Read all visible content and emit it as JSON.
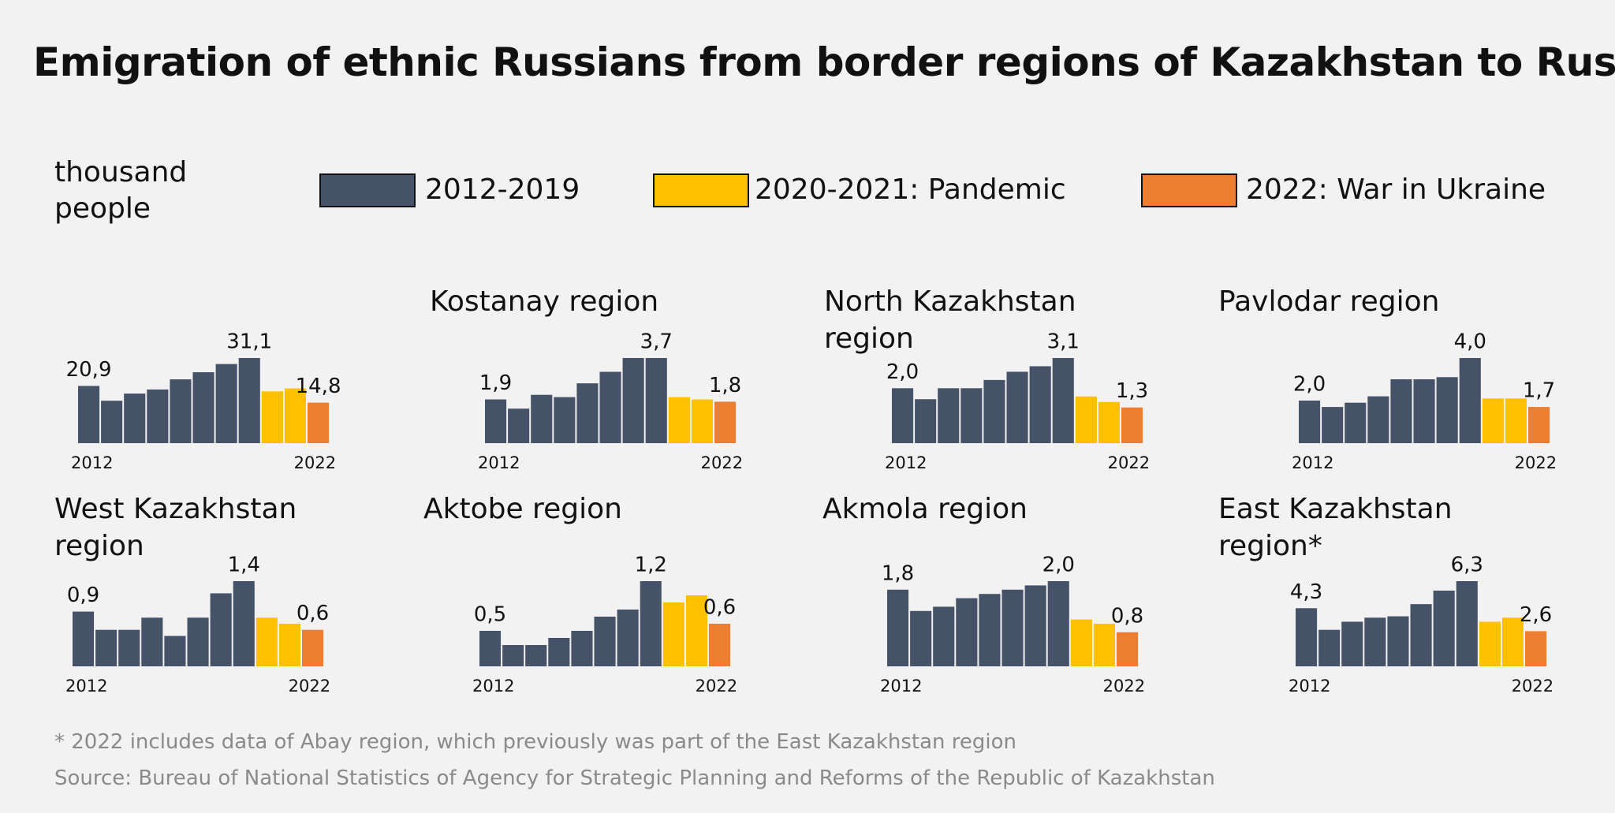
{
  "title": "Emigration of ethnic Russians from border regions of Kazakhstan to Russia",
  "legend": {
    "title": "thousand people",
    "items": [
      {
        "name": "2012-2019",
        "color": "#465267"
      },
      {
        "name": "2020-2021: Pandemic",
        "color": "#ffc000"
      },
      {
        "name": "2022: War in Ukraine",
        "color": "#ed7d31"
      }
    ]
  },
  "notes": [
    "* 2022 includes data of Abay region, which previously was part of the East Kazakhstan region",
    "Source: Bureau of National Statistics of Agency for Strategic Planning and Reforms of the Republic of Kazakhstan"
  ],
  "chart_data": [
    {
      "type": "bar",
      "categories": [
        "2012",
        null,
        null,
        null,
        null,
        null,
        null,
        null,
        null,
        null,
        "2022"
      ],
      "values": [
        20.9,
        15.5,
        18.1,
        19.6,
        23.3,
        25.9,
        28.9,
        31.1,
        18.9,
        20.0,
        14.8
      ],
      "value_labels": [
        "20,9",
        null,
        null,
        null,
        null,
        null,
        null,
        "31,1",
        null,
        null,
        "14,8"
      ],
      "colors": [
        "#465267",
        "#465267",
        "#465267",
        "#465267",
        "#465267",
        "#465267",
        "#465267",
        "#465267",
        "#ffc000",
        "#ffc000",
        "#ed7d31"
      ]
    },
    {
      "type": "bar",
      "title": "Kostanay region",
      "categories": [
        "2012",
        null,
        null,
        null,
        null,
        null,
        null,
        null,
        null,
        null,
        "2022"
      ],
      "values": [
        1.9,
        1.5,
        2.1,
        2.0,
        2.6,
        3.1,
        3.7,
        3.7,
        2.0,
        1.9,
        1.8
      ],
      "value_labels": [
        "1,9",
        null,
        null,
        null,
        null,
        null,
        null,
        "3,7",
        null,
        null,
        "1,8"
      ],
      "colors": [
        "#465267",
        "#465267",
        "#465267",
        "#465267",
        "#465267",
        "#465267",
        "#465267",
        "#465267",
        "#ffc000",
        "#ffc000",
        "#ed7d31"
      ]
    },
    {
      "type": "bar",
      "title": "North Kazakhstan region",
      "categories": [
        "2012",
        null,
        null,
        null,
        null,
        null,
        null,
        null,
        null,
        null,
        "2022"
      ],
      "values": [
        2.0,
        1.6,
        2.0,
        2.0,
        2.3,
        2.6,
        2.8,
        3.1,
        1.7,
        1.5,
        1.3
      ],
      "value_labels": [
        "2,0",
        null,
        null,
        null,
        null,
        null,
        null,
        "3,1",
        null,
        null,
        "1,3"
      ],
      "colors": [
        "#465267",
        "#465267",
        "#465267",
        "#465267",
        "#465267",
        "#465267",
        "#465267",
        "#465267",
        "#ffc000",
        "#ffc000",
        "#ed7d31"
      ]
    },
    {
      "type": "bar",
      "title": "Pavlodar region",
      "categories": [
        "2012",
        null,
        null,
        null,
        null,
        null,
        null,
        null,
        null,
        null,
        "2022"
      ],
      "values": [
        2.0,
        1.7,
        1.9,
        2.2,
        3.0,
        3.0,
        3.1,
        4.0,
        2.1,
        2.1,
        1.7
      ],
      "value_labels": [
        "2,0",
        null,
        null,
        null,
        null,
        null,
        null,
        "4,0",
        null,
        null,
        "1,7"
      ],
      "colors": [
        "#465267",
        "#465267",
        "#465267",
        "#465267",
        "#465267",
        "#465267",
        "#465267",
        "#465267",
        "#ffc000",
        "#ffc000",
        "#ed7d31"
      ]
    },
    {
      "type": "bar",
      "title": "West Kazakhstan region",
      "categories": [
        "2012",
        null,
        null,
        null,
        null,
        null,
        null,
        null,
        null,
        null,
        "2022"
      ],
      "values": [
        0.9,
        0.6,
        0.6,
        0.8,
        0.5,
        0.8,
        1.2,
        1.4,
        0.8,
        0.7,
        0.6
      ],
      "value_labels": [
        "0,9",
        null,
        null,
        null,
        null,
        null,
        null,
        "1,4",
        null,
        null,
        "0,6"
      ],
      "colors": [
        "#465267",
        "#465267",
        "#465267",
        "#465267",
        "#465267",
        "#465267",
        "#465267",
        "#465267",
        "#ffc000",
        "#ffc000",
        "#ed7d31"
      ]
    },
    {
      "type": "bar",
      "title": "Aktobe region",
      "categories": [
        "2012",
        null,
        null,
        null,
        null,
        null,
        null,
        null,
        null,
        null,
        "2022"
      ],
      "values": [
        0.5,
        0.3,
        0.3,
        0.4,
        0.5,
        0.7,
        0.8,
        1.2,
        0.9,
        1.0,
        0.6
      ],
      "value_labels": [
        "0,5",
        null,
        null,
        null,
        null,
        null,
        null,
        "1,2",
        null,
        null,
        "0,6"
      ],
      "colors": [
        "#465267",
        "#465267",
        "#465267",
        "#465267",
        "#465267",
        "#465267",
        "#465267",
        "#465267",
        "#ffc000",
        "#ffc000",
        "#ed7d31"
      ]
    },
    {
      "type": "bar",
      "title": "Akmola region",
      "categories": [
        "2012",
        null,
        null,
        null,
        null,
        null,
        null,
        null,
        null,
        null,
        "2022"
      ],
      "values": [
        1.8,
        1.3,
        1.4,
        1.6,
        1.7,
        1.8,
        1.9,
        2.0,
        1.1,
        1.0,
        0.8
      ],
      "value_labels": [
        "1,8",
        null,
        null,
        null,
        null,
        null,
        null,
        "2,0",
        null,
        null,
        "0,8"
      ],
      "colors": [
        "#465267",
        "#465267",
        "#465267",
        "#465267",
        "#465267",
        "#465267",
        "#465267",
        "#465267",
        "#ffc000",
        "#ffc000",
        "#ed7d31"
      ]
    },
    {
      "type": "bar",
      "title": "East Kazakhstan region*",
      "categories": [
        "2012",
        null,
        null,
        null,
        null,
        null,
        null,
        null,
        null,
        null,
        "2022"
      ],
      "values": [
        4.3,
        2.7,
        3.3,
        3.6,
        3.7,
        4.6,
        5.6,
        6.3,
        3.3,
        3.6,
        2.6
      ],
      "value_labels": [
        "4,3",
        null,
        null,
        null,
        null,
        null,
        null,
        "6,3",
        null,
        null,
        "2,6"
      ],
      "colors": [
        "#465267",
        "#465267",
        "#465267",
        "#465267",
        "#465267",
        "#465267",
        "#465267",
        "#465267",
        "#ffc000",
        "#ffc000",
        "#ed7d31"
      ]
    }
  ]
}
